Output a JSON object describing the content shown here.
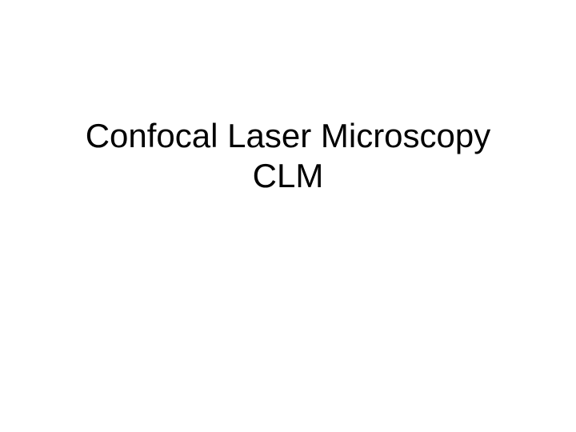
{
  "slide": {
    "title_line1": "Confocal Laser Microscopy",
    "title_line2": "CLM",
    "background_color": "#ffffff",
    "text_color": "#000000",
    "font_family": "Arial",
    "title_fontsize": 42,
    "title_fontweight": 400
  }
}
